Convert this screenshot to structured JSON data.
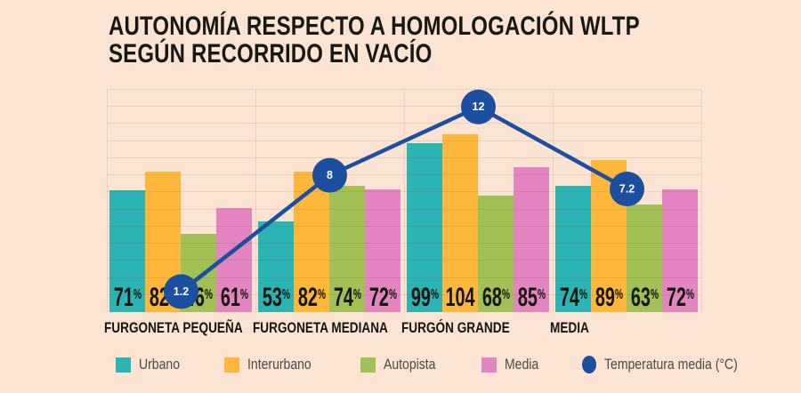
{
  "title": {
    "line1": "AUTONOMÍA RESPECTO A HOMOLOGACIÓN WLTP",
    "line2": "SEGÚN RECORRIDO EN VACÍO"
  },
  "chart_data": {
    "type": "bar",
    "subtype": "grouped bars with overlaid line (temperature)",
    "categories": [
      "FURGONETA PEQUEÑA",
      "FURGONETA MEDIANA",
      "FURGÓN GRANDE",
      "MEDIA"
    ],
    "series": [
      {
        "name": "Urbano",
        "color": "#2bb4b3",
        "values": [
          71,
          53,
          99,
          74
        ],
        "labels": [
          "71%",
          "53%",
          "99%",
          "74%"
        ]
      },
      {
        "name": "Interurbano",
        "color": "#fdb83c",
        "values": [
          82,
          82,
          104,
          89
        ],
        "labels": [
          "82%",
          "82%",
          "104",
          "89%"
        ]
      },
      {
        "name": "Autopista",
        "color": "#a1c055",
        "values": [
          46,
          74,
          68,
          63
        ],
        "labels": [
          "46%",
          "74%",
          "68%",
          "63%"
        ]
      },
      {
        "name": "Media",
        "color": "#e285c0",
        "values": [
          61,
          72,
          85,
          72
        ],
        "labels": [
          "61%",
          "72%",
          "85%",
          "72%"
        ]
      }
    ],
    "line_series": {
      "name": "Temperatura media (°C)",
      "color": "#1c4f9f",
      "values": [
        1.2,
        8,
        12,
        7.2
      ],
      "labels": [
        "1.2",
        "8",
        "12",
        "7.2"
      ]
    },
    "ylabel": "",
    "xlabel": "",
    "ylim": [
      0,
      130
    ],
    "temperature_axis_lim": [
      0,
      13
    ],
    "grid": "horizontal lines every 10% (one per °C), vertical lines at group boundaries",
    "legend_position": "bottom"
  },
  "legend": {
    "items": [
      {
        "label": "Urbano",
        "marker": "square",
        "color": "#2bb4b3"
      },
      {
        "label": "Interurbano",
        "marker": "square",
        "color": "#fdb83c"
      },
      {
        "label": "Autopista",
        "marker": "square",
        "color": "#a1c055"
      },
      {
        "label": "Media",
        "marker": "square",
        "color": "#e285c0"
      },
      {
        "label": "Temperatura media (°C)",
        "marker": "circle",
        "color": "#1c4f9f"
      }
    ]
  },
  "colors": {
    "background": "#fce4d4",
    "text_dark": "#16150f",
    "legend_text": "#4b4a47",
    "gridline": "rgba(139,69,19,0.12)",
    "line_blue": "#1c4f9f"
  }
}
